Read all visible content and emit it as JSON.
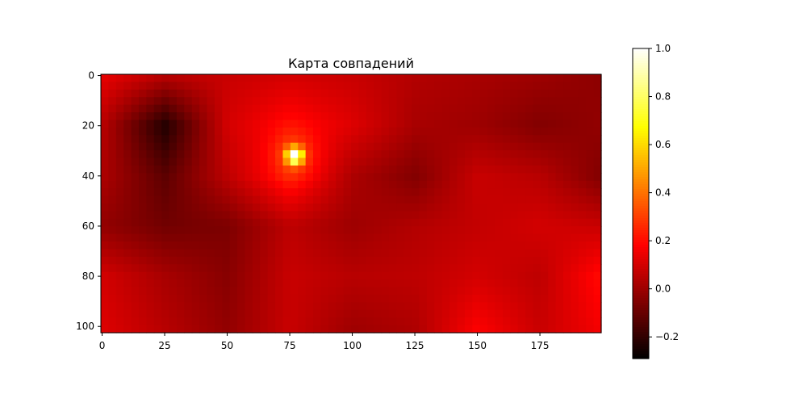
{
  "chart_data": {
    "type": "heatmap",
    "title": "Карта совпадений",
    "xlabel": "",
    "ylabel": "",
    "grid": false,
    "colormap": "hot",
    "x_range": [
      0,
      199
    ],
    "y_range": [
      0,
      102
    ],
    "y_inverted": true,
    "x_ticks": [
      "0",
      "25",
      "50",
      "75",
      "100",
      "125",
      "150",
      "175"
    ],
    "y_ticks": [
      "0",
      "20",
      "40",
      "60",
      "80",
      "100"
    ],
    "colorbar": {
      "range": [
        -0.29,
        1.0
      ],
      "ticks": [
        "−0.2",
        "0.0",
        "0.2",
        "0.4",
        "0.6",
        "0.8",
        "1.0"
      ]
    },
    "peak": {
      "x": 77,
      "y": 32,
      "value": 1.0
    },
    "grid_values": {
      "x": [
        0,
        25,
        50,
        75,
        100,
        125,
        150,
        175,
        199
      ],
      "y": [
        0,
        20,
        40,
        60,
        80,
        102
      ],
      "values": [
        [
          0.14,
          0.05,
          0.08,
          0.1,
          0.08,
          0.04,
          0.02,
          0.0,
          -0.03
        ],
        [
          0.05,
          -0.23,
          0.1,
          0.2,
          0.12,
          0.02,
          0.0,
          -0.05,
          -0.02
        ],
        [
          0.03,
          -0.12,
          0.06,
          0.22,
          0.03,
          -0.05,
          0.08,
          0.05,
          -0.05
        ],
        [
          -0.02,
          -0.08,
          -0.06,
          0.06,
          0.0,
          0.04,
          0.07,
          0.1,
          0.08
        ],
        [
          0.1,
          0.02,
          -0.04,
          0.08,
          0.05,
          0.06,
          0.1,
          0.06,
          0.2
        ],
        [
          0.12,
          0.05,
          -0.02,
          0.08,
          0.0,
          0.03,
          0.18,
          0.08,
          0.16
        ]
      ]
    }
  }
}
